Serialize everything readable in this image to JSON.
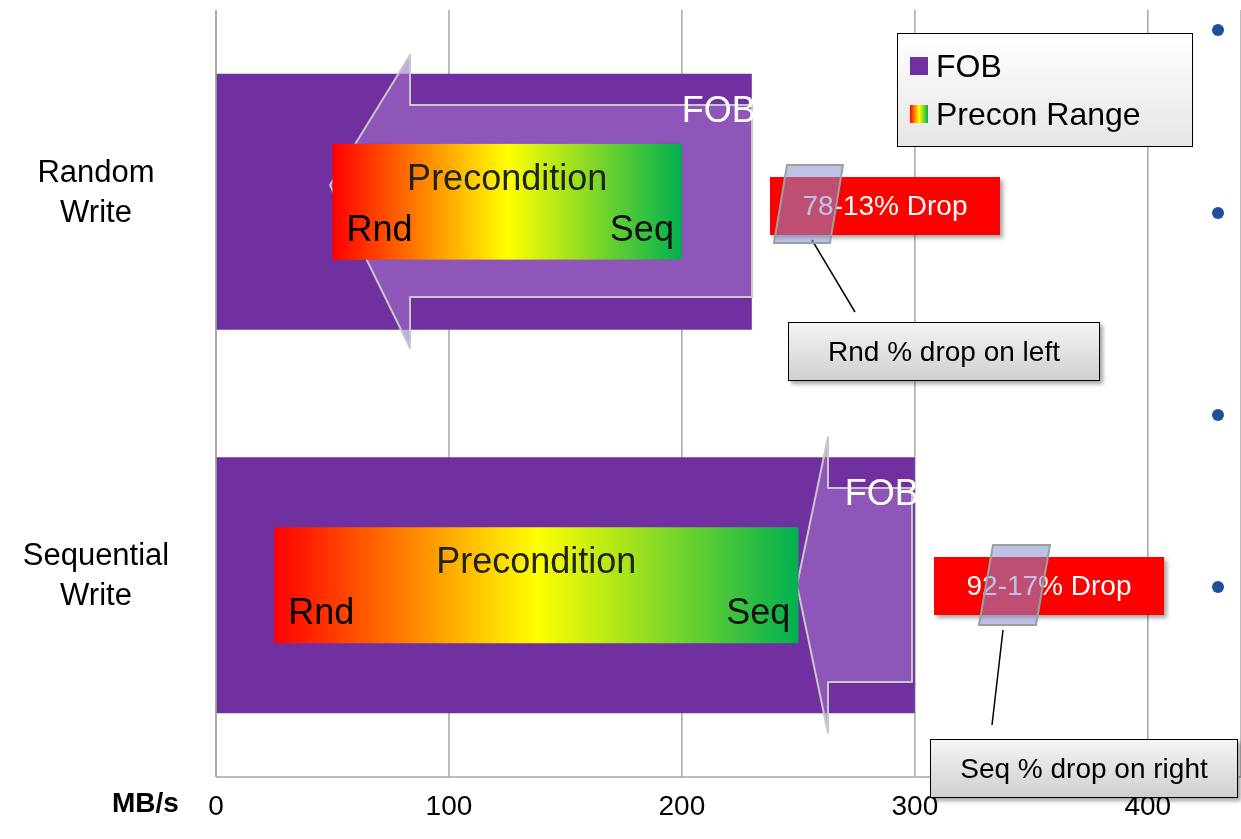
{
  "chart_data": {
    "type": "bar",
    "orientation": "horizontal",
    "xlabel": "MB/s",
    "categories": [
      "Random Write",
      "Sequential Write"
    ],
    "series": [
      {
        "name": "FOB",
        "color": "#7030a0",
        "values": [
          230,
          300
        ]
      },
      {
        "name": "Precon Range",
        "color": "#00b050",
        "base": [
          50,
          25
        ],
        "values": [
          150,
          225
        ]
      }
    ],
    "xlim": [
      0,
      440
    ],
    "xticks": [
      0,
      100,
      200,
      300,
      400
    ],
    "grid": "x",
    "legend": "top right",
    "annotations": [
      {
        "text": "FOB",
        "x": 230,
        "y": "Random Write"
      },
      {
        "text": "Rnd",
        "x": 50,
        "y": "Random Write"
      },
      {
        "text": "Seq",
        "x": 200,
        "y": "Random Write"
      },
      {
        "text": "FOB",
        "x": 300,
        "y": "Sequential Write"
      },
      {
        "text": "Rnd",
        "x": 25,
        "y": "Sequential Write"
      },
      {
        "text": "Seq",
        "x": 250,
        "y": "Sequential Write"
      },
      "Precondition",
      "Precondition",
      "78-13% Drop",
      "92-17% Drop",
      "Rnd % drop on left",
      "Seq % drop on right"
    ]
  }
}
